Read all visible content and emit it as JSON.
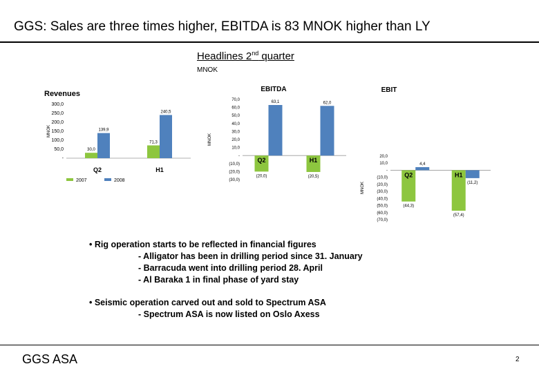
{
  "page": {
    "title": "GGS: Sales are three times higher, EBITDA is 83 MNOK higher than LY",
    "headline_text": "Headlines 2",
    "headline_sup": "nd",
    "headline_tail": " quarter",
    "unit": "MNOK",
    "bullets": [
      "• Rig operation starts to be reflected in financial figures",
      "- Alligator has been in drilling period since 31. January",
      "- Barracuda went into drilling period 28. April",
      "- Al Baraka 1 in final phase of yard stay",
      "• Seismic operation carved out and sold to Spectrum ASA",
      "- Spectrum ASA is now listed on Oslo Axess"
    ],
    "footer_company": "GGS ASA",
    "page_number": "2"
  },
  "colors": {
    "series_2007": "#8dc63f",
    "series_2008": "#4f81bd"
  },
  "chart_data": [
    {
      "type": "bar",
      "title": "Revenues",
      "ylabel": "MNOK",
      "categories": [
        "Q2",
        "H1"
      ],
      "series": [
        {
          "name": "2007",
          "values": [
            30.0,
            71.3
          ]
        },
        {
          "name": "2008",
          "values": [
            139.9,
            240.5
          ]
        }
      ],
      "data_labels": [
        [
          "30,0",
          "71,3"
        ],
        [
          "139,9",
          "240,5"
        ]
      ],
      "ylim": [
        0,
        300
      ],
      "yticks": [
        "-",
        "50,0",
        "100,0",
        "150,0",
        "200,0",
        "250,0",
        "300,0"
      ],
      "legend": "bottom",
      "grid": false
    },
    {
      "type": "bar",
      "title": "EBITDA",
      "ylabel": "MNOK",
      "categories": [
        "Q2",
        "H1"
      ],
      "series": [
        {
          "name": "2007",
          "values": [
            -20.0,
            -20.5
          ]
        },
        {
          "name": "2008",
          "values": [
            63.1,
            62.0
          ]
        }
      ],
      "data_labels": [
        [
          "(20,0)",
          "(20,5)"
        ],
        [
          "63,1",
          "62,0"
        ]
      ],
      "ylim": [
        -30,
        70
      ],
      "yticks": [
        "(30,0)",
        "(20,0)",
        "(10,0)",
        "-",
        "10,0",
        "20,0",
        "30,0",
        "40,0",
        "50,0",
        "60,0",
        "70,0"
      ],
      "grid": false
    },
    {
      "type": "bar",
      "title": "EBIT",
      "ylabel": "MNOK",
      "categories": [
        "Q2",
        "H1"
      ],
      "series": [
        {
          "name": "2007",
          "values": [
            -44.3,
            -57.4
          ]
        },
        {
          "name": "2008",
          "values": [
            4.4,
            -11.2
          ]
        }
      ],
      "data_labels": [
        [
          "(44,3)",
          "(57,4)"
        ],
        [
          "4,4",
          "(11,2)"
        ]
      ],
      "ylim": [
        -70,
        20
      ],
      "yticks": [
        "(70,0)",
        "(60,0)",
        "(50,0)",
        "(40,0)",
        "(30,0)",
        "(20,0)",
        "(10,0)",
        "-",
        "10,0",
        "20,0"
      ],
      "grid": false
    }
  ]
}
